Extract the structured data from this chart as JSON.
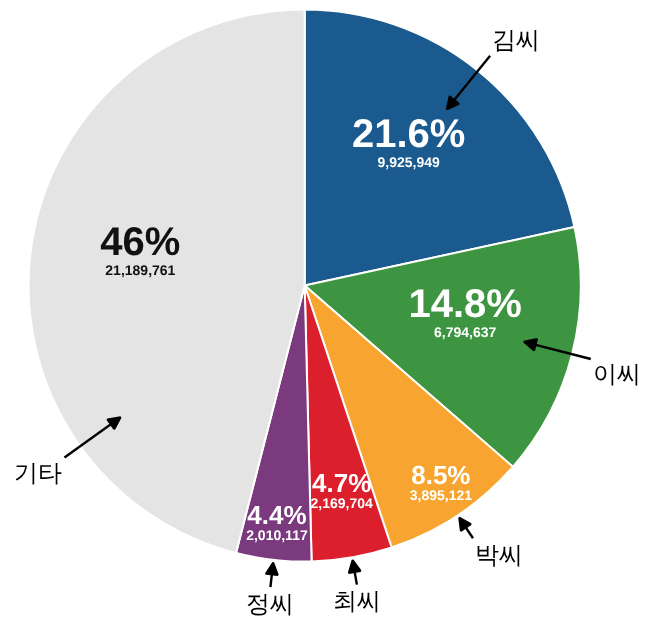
{
  "chart_data": {
    "type": "pie",
    "categories": [
      "김씨",
      "이씨",
      "박씨",
      "최씨",
      "정씨",
      "기타"
    ],
    "values": [
      21.6,
      14.8,
      8.5,
      4.7,
      4.4,
      46
    ],
    "colors": [
      "#1b5a8e",
      "#3d9441",
      "#f7a530",
      "#dc1f2c",
      "#7b3a7e",
      "#e4e4e4"
    ],
    "value_labels": [
      "21.6%\n9,925,949",
      "14.8%\n6,794,637",
      "8.5%\n3,895,121",
      "4.7%\n2,169,704",
      "4.4%\n2,010,117",
      "46%\n21,189,761"
    ]
  }
}
